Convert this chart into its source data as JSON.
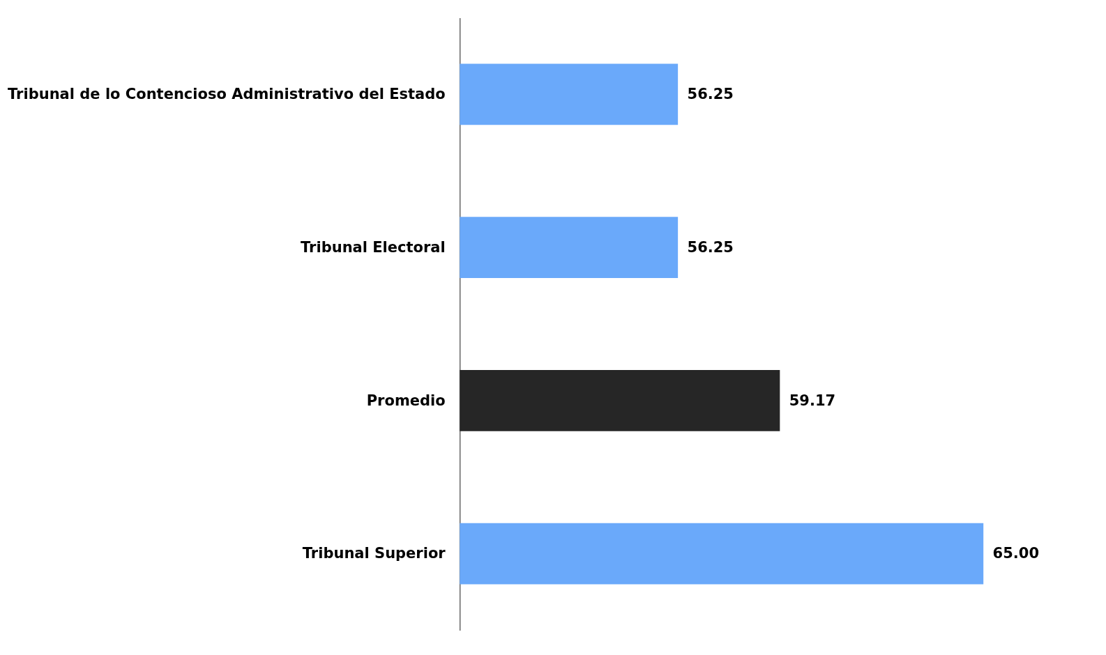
{
  "chart_data": {
    "type": "bar",
    "orientation": "horizontal",
    "categories": [
      "Tribunal de lo Contencioso Administrativo del Estado",
      "Tribunal Electoral",
      "Promedio",
      "Tribunal Superior"
    ],
    "values": [
      56.25,
      56.25,
      59.17,
      65.0
    ],
    "colors": [
      "#6aa9fa",
      "#6aa9fa",
      "#262626",
      "#6aa9fa"
    ],
    "value_labels": [
      "56.25",
      "56.25",
      "59.17",
      "65.00"
    ],
    "xlim": [
      50,
      65
    ],
    "tick_labels": "y"
  }
}
